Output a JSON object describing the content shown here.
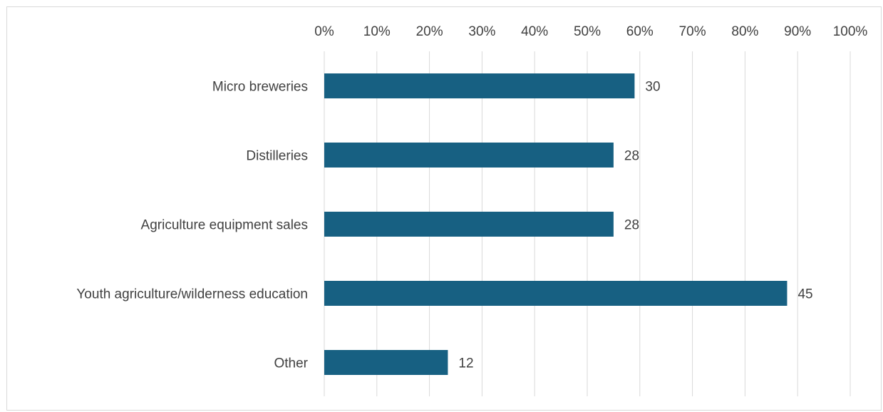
{
  "chart_data": {
    "type": "bar",
    "orientation": "horizontal",
    "title": "",
    "xlabel": "",
    "ylabel": "",
    "categories": [
      "Micro breweries",
      "Distilleries",
      "Agriculture equipment sales",
      "Youth agriculture/wilderness education",
      "Other"
    ],
    "values_pct": [
      59,
      55,
      55,
      88,
      23.5
    ],
    "data_labels": [
      "30",
      "28",
      "28",
      "45",
      "12"
    ],
    "x_ticks": [
      "0%",
      "10%",
      "20%",
      "30%",
      "40%",
      "50%",
      "60%",
      "70%",
      "80%",
      "90%",
      "100%"
    ],
    "xlim": [
      0,
      100
    ],
    "x_axis_position": "top",
    "grid": true,
    "legend": "none",
    "bar_color": "#176082",
    "grid_color": "#d9d9d9"
  }
}
